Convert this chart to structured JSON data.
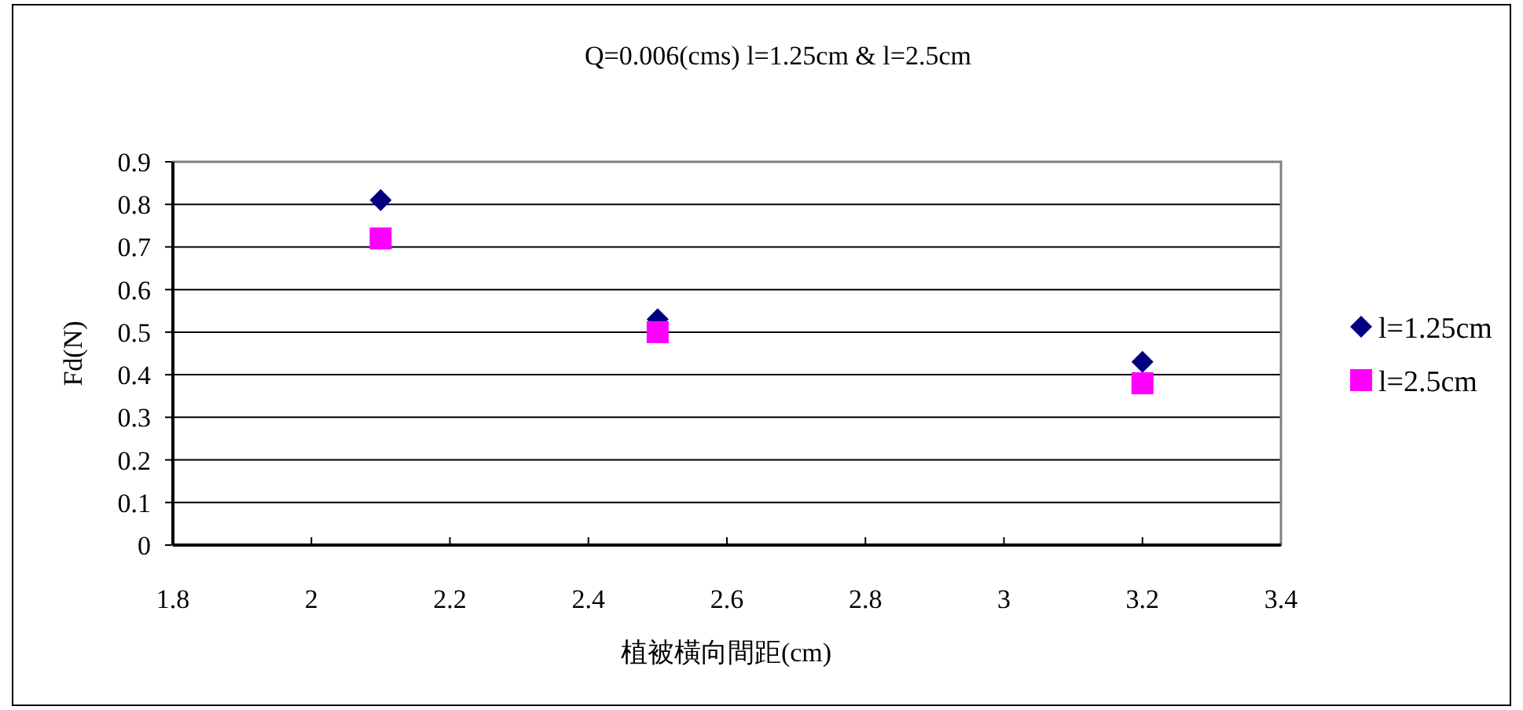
{
  "chart_data": {
    "type": "scatter",
    "title": "Q=0.006(cms) l=1.25cm & l=2.5cm",
    "xlabel": "植被橫向間距(cm)",
    "ylabel": "Fd(N)",
    "series": [
      {
        "name": "l=1.25cm",
        "color": "#000080",
        "marker": "diamond",
        "x": [
          2.1,
          2.5,
          3.2
        ],
        "values": [
          0.81,
          0.53,
          0.43
        ]
      },
      {
        "name": "l=2.5cm",
        "color": "#ff00ff",
        "marker": "square",
        "x": [
          2.1,
          2.5,
          3.2
        ],
        "values": [
          0.72,
          0.5,
          0.38
        ]
      }
    ],
    "xlim": [
      1.8,
      3.4
    ],
    "xticks": [
      1.8,
      2,
      2.2,
      2.4,
      2.6,
      2.8,
      3,
      3.2,
      3.4
    ],
    "ylim": [
      0,
      0.9
    ],
    "yticks": [
      0,
      0.1,
      0.2,
      0.3,
      0.4,
      0.5,
      0.6,
      0.7,
      0.8,
      0.9
    ],
    "grid": "y",
    "legend": "right"
  }
}
